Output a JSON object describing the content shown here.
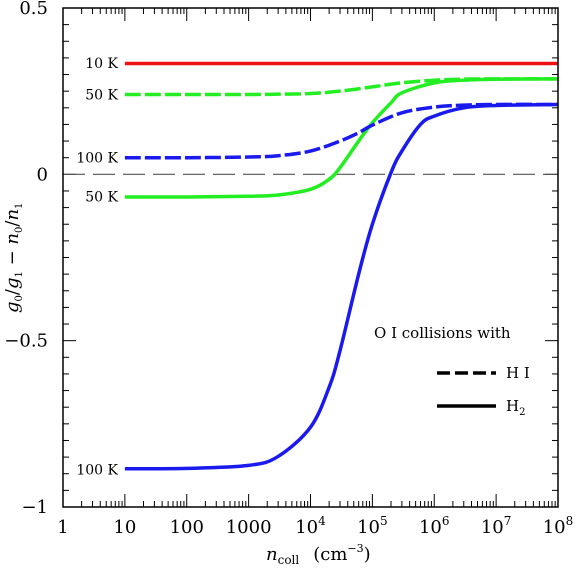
{
  "chart_data": {
    "type": "line",
    "xlabel": "n_coll (cm^-3)",
    "ylabel": "g0/g1 - n0/n1",
    "xscale": "log",
    "xlim": [
      1,
      100000000
    ],
    "ylim": [
      -1,
      0.5
    ],
    "grid": false,
    "x_tick_labels": [
      "1",
      "10",
      "100",
      "1000",
      "10^4",
      "10^5",
      "10^6",
      "10^7",
      "10^8"
    ],
    "y_tick_labels": [
      "0.5",
      "0",
      "-0.5",
      "-1"
    ],
    "reference_line": {
      "y": 0,
      "style": "dashed",
      "color": "#555555"
    },
    "series": [
      {
        "name": "10 K",
        "partner": "H2",
        "style": "solid",
        "color": "#ee1111",
        "x": [
          10,
          100,
          1000,
          10000,
          100000,
          1000000,
          10000000,
          100000000
        ],
        "y": [
          0.333,
          0.333,
          0.333,
          0.333,
          0.333,
          0.333,
          0.333,
          0.333
        ]
      },
      {
        "name": "50 K",
        "partner": "H I",
        "style": "dashed",
        "color": "#22ee22",
        "x": [
          10,
          100,
          1000,
          3000,
          10000,
          30000,
          100000,
          300000,
          1000000,
          3000000,
          10000000,
          100000000
        ],
        "y": [
          0.24,
          0.24,
          0.24,
          0.241,
          0.243,
          0.25,
          0.263,
          0.275,
          0.283,
          0.286,
          0.287,
          0.287
        ]
      },
      {
        "name": "50 K",
        "partner": "H2",
        "style": "solid",
        "color": "#22ee22",
        "x": [
          10,
          100,
          1000,
          3000,
          10000,
          20000,
          30000,
          60000,
          100000,
          200000,
          300000,
          1000000,
          3000000,
          10000000,
          100000000
        ],
        "y": [
          -0.068,
          -0.068,
          -0.066,
          -0.062,
          -0.045,
          -0.015,
          0.02,
          0.1,
          0.155,
          0.215,
          0.245,
          0.275,
          0.283,
          0.286,
          0.287
        ]
      },
      {
        "name": "100 K",
        "partner": "H I",
        "style": "dashed",
        "color": "#1a1aee",
        "x": [
          10,
          100,
          1000,
          3000,
          10000,
          30000,
          60000,
          100000,
          300000,
          1000000,
          3000000,
          10000000,
          100000000
        ],
        "y": [
          0.05,
          0.05,
          0.052,
          0.056,
          0.07,
          0.1,
          0.125,
          0.148,
          0.185,
          0.202,
          0.208,
          0.21,
          0.21
        ]
      },
      {
        "name": "100 K",
        "partner": "H2",
        "style": "solid",
        "color": "#1a1aee",
        "x": [
          10,
          100,
          1000,
          3000,
          10000,
          20000,
          30000,
          60000,
          100000,
          200000,
          300000,
          600000,
          1000000,
          3000000,
          10000000,
          100000000
        ],
        "y": [
          -0.885,
          -0.884,
          -0.875,
          -0.848,
          -0.76,
          -0.64,
          -0.53,
          -0.3,
          -0.15,
          0.005,
          0.07,
          0.15,
          0.175,
          0.2,
          0.207,
          0.21
        ]
      }
    ],
    "curve_labels": [
      {
        "text": "10 K",
        "y": 0.335
      },
      {
        "text": "50 K",
        "y": 0.24
      },
      {
        "text": "100 K",
        "y": 0.05
      },
      {
        "text": "50 K",
        "y": -0.066
      },
      {
        "text": "100 K",
        "y": -0.888
      }
    ],
    "legend": {
      "title": "O I collisions with",
      "position": "lower-right",
      "entries": [
        {
          "label": "H I",
          "style": "dashed"
        },
        {
          "label": "H2",
          "style": "solid"
        }
      ]
    }
  }
}
